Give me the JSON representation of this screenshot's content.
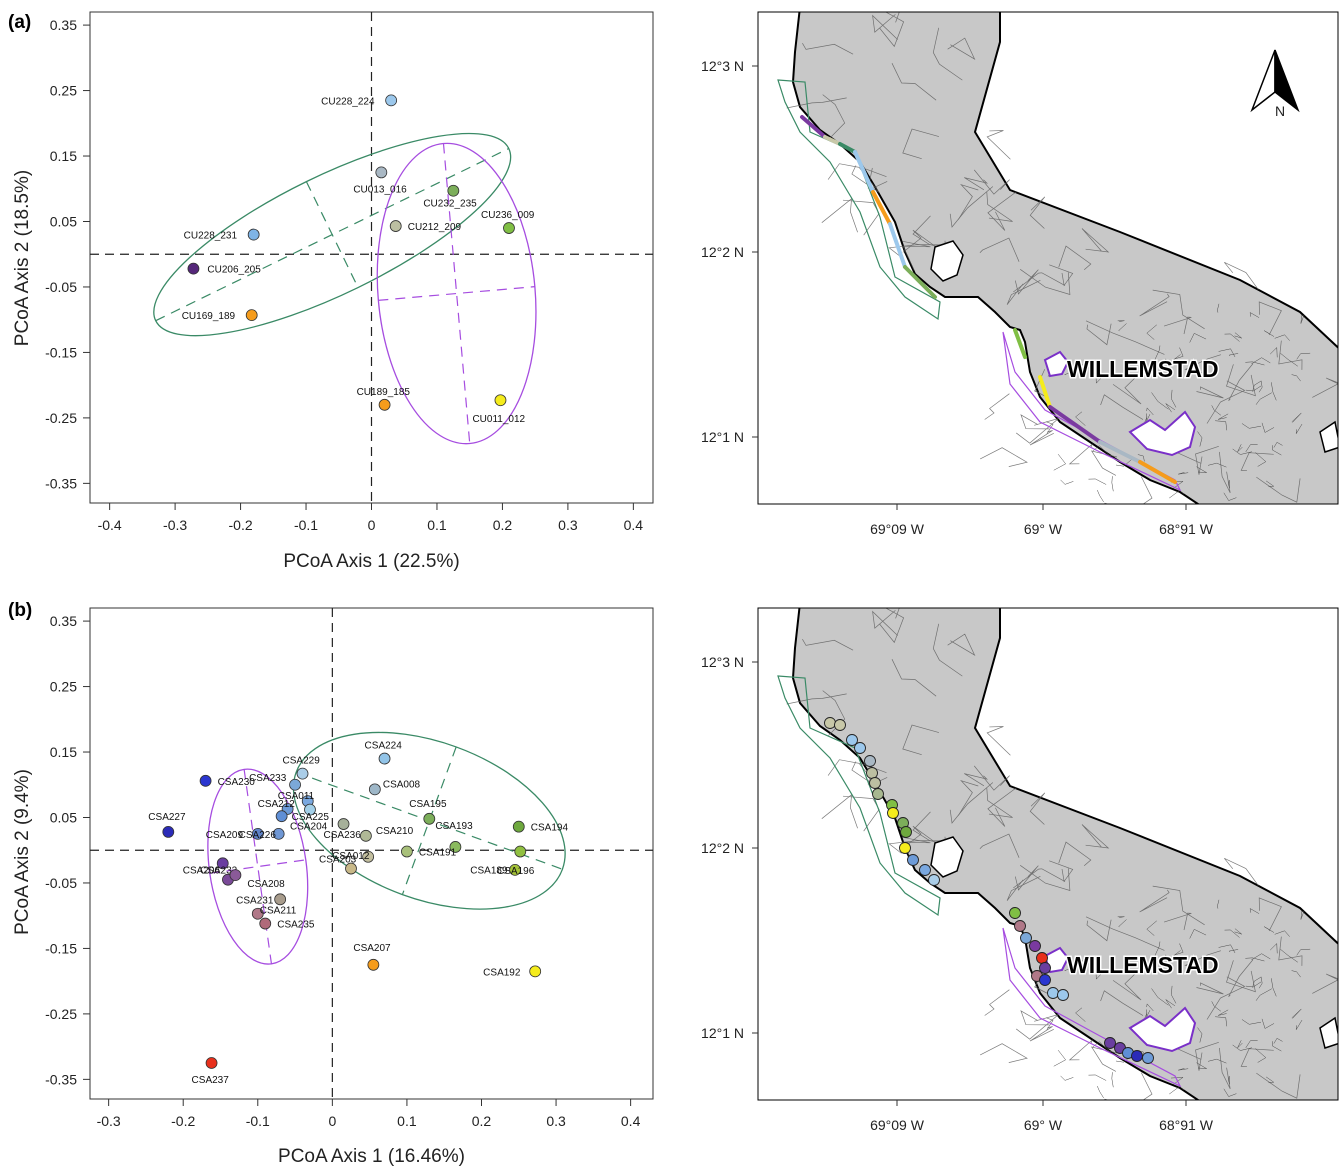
{
  "chart_data": [
    {
      "panel": "(a)",
      "type": "scatter",
      "xlabel": "PCoA Axis 1 (22.5%)",
      "ylabel": "PCoA Axis 2 (18.5%)",
      "xlim": [
        -0.43,
        0.43
      ],
      "ylim": [
        -0.38,
        0.37
      ],
      "xticks": [
        "-0.4",
        "-0.3",
        "-0.2",
        "-0.1",
        "0",
        "0.1",
        "0.2",
        "0.3",
        "0.4"
      ],
      "yticks": [
        "0.35",
        "0.25",
        "0.15",
        "0.05",
        "-0.05",
        "-0.15",
        "-0.25",
        "-0.35"
      ],
      "reference_lines": {
        "x": 0,
        "y": 0,
        "style": "dashed"
      },
      "points": [
        {
          "label": "CU228_224",
          "x": 0.03,
          "y": 0.235,
          "color": "#9cc8ec"
        },
        {
          "label": "CU013_016",
          "x": 0.015,
          "y": 0.125,
          "color": "#a9b8c4"
        },
        {
          "label": "CU232_235",
          "x": 0.125,
          "y": 0.097,
          "color": "#7cae5a"
        },
        {
          "label": "CU236_009",
          "x": 0.21,
          "y": 0.04,
          "color": "#80bf44"
        },
        {
          "label": "CU212_209",
          "x": 0.037,
          "y": 0.043,
          "color": "#bcbfa2"
        },
        {
          "label": "CU228_231",
          "x": -0.18,
          "y": 0.03,
          "color": "#7fb4e6"
        },
        {
          "label": "CU206_205",
          "x": -0.272,
          "y": -0.022,
          "color": "#55277a"
        },
        {
          "label": "CU169_189",
          "x": -0.183,
          "y": -0.093,
          "color": "#f59c1c"
        },
        {
          "label": "CU189_185",
          "x": 0.02,
          "y": -0.23,
          "color": "#f59c1c"
        },
        {
          "label": "CU011_012",
          "x": 0.197,
          "y": -0.223,
          "color": "#f5ec1c"
        }
      ],
      "ellipses": [
        {
          "color": "#3a8a66",
          "cx": -0.06,
          "cy": 0.03,
          "rx": 0.3,
          "ry": 0.09,
          "angle_deg": 26
        },
        {
          "color": "#a64de0",
          "cx": 0.13,
          "cy": -0.06,
          "rx": 0.12,
          "ry": 0.23,
          "angle_deg": 5
        }
      ]
    },
    {
      "panel": "(b)",
      "type": "scatter",
      "xlabel": "PCoA Axis 1 (16.46%)",
      "ylabel": "PCoA Axis 2 (9.4%)",
      "xlim": [
        -0.325,
        0.43
      ],
      "ylim": [
        -0.38,
        0.37
      ],
      "xticks": [
        "-0.3",
        "-0.2",
        "-0.1",
        "0",
        "0.1",
        "0.2",
        "0.3",
        "0.4"
      ],
      "yticks": [
        "0.35",
        "0.25",
        "0.15",
        "0.05",
        "-0.05",
        "-0.15",
        "-0.25",
        "-0.35"
      ],
      "reference_lines": {
        "x": 0,
        "y": 0,
        "style": "dashed"
      },
      "points": [
        {
          "label": "CSA224",
          "x": 0.07,
          "y": 0.14,
          "color": "#92c4e8"
        },
        {
          "label": "CSA229",
          "x": -0.04,
          "y": 0.117,
          "color": "#aacde8"
        },
        {
          "label": "CSA233",
          "x": -0.05,
          "y": 0.1,
          "color": "#7ba8d8"
        },
        {
          "label": "CSA230",
          "x": -0.17,
          "y": 0.106,
          "color": "#2b36d0"
        },
        {
          "label": "CSA008",
          "x": 0.057,
          "y": 0.093,
          "color": "#9eb7c8"
        },
        {
          "label": "CSA011",
          "x": -0.033,
          "y": 0.075,
          "color": "#7aa8e0"
        },
        {
          "label": "CSA212",
          "x": -0.06,
          "y": 0.063,
          "color": "#6d9bd8"
        },
        {
          "label": "CSA204",
          "x": -0.03,
          "y": 0.062,
          "color": "#a3cfe8"
        },
        {
          "label": "CSA225",
          "x": -0.068,
          "y": 0.052,
          "color": "#5f8fd6"
        },
        {
          "label": "CSA195",
          "x": 0.13,
          "y": 0.048,
          "color": "#7cae5a"
        },
        {
          "label": "CSA194",
          "x": 0.25,
          "y": 0.036,
          "color": "#6ea83e"
        },
        {
          "label": "CSA193",
          "x": 0.165,
          "y": 0.005,
          "color": "#8aba5e"
        },
        {
          "label": "CSA227",
          "x": -0.22,
          "y": 0.028,
          "color": "#2b2bb8"
        },
        {
          "label": "CSA209",
          "x": -0.1,
          "y": 0.025,
          "color": "#5e82c8"
        },
        {
          "label": "CSA226",
          "x": -0.072,
          "y": 0.025,
          "color": "#6f97d4"
        },
        {
          "label": "CSA236",
          "x": 0.015,
          "y": 0.04,
          "color": "#a6b09a"
        },
        {
          "label": "CSA210",
          "x": 0.045,
          "y": 0.022,
          "color": "#b0b896"
        },
        {
          "label": "CSA191",
          "x": 0.1,
          "y": -0.002,
          "color": "#a8c07a"
        },
        {
          "label": "CSA012",
          "x": 0.048,
          "y": -0.01,
          "color": "#c2be9e"
        },
        {
          "label": "CSA206",
          "x": -0.147,
          "y": -0.02,
          "color": "#6a3ea0"
        },
        {
          "label": "CSA232",
          "x": -0.14,
          "y": -0.045,
          "color": "#7a4a98"
        },
        {
          "label": "CSA208",
          "x": -0.13,
          "y": -0.038,
          "color": "#8a5a98"
        },
        {
          "label": "CSA203",
          "x": 0.025,
          "y": -0.028,
          "color": "#c8b888"
        },
        {
          "label": "CSA189",
          "x": 0.252,
          "y": -0.002,
          "color": "#90c040"
        },
        {
          "label": "CSA196",
          "x": 0.245,
          "y": -0.03,
          "color": "#a4c238"
        },
        {
          "label": "CSA231",
          "x": -0.07,
          "y": -0.075,
          "color": "#a89c8c"
        },
        {
          "label": "CSA211",
          "x": -0.1,
          "y": -0.097,
          "color": "#b07888"
        },
        {
          "label": "CSA235",
          "x": -0.09,
          "y": -0.112,
          "color": "#b06a7a"
        },
        {
          "label": "CSA207",
          "x": 0.055,
          "y": -0.175,
          "color": "#f59c1c"
        },
        {
          "label": "CSA192",
          "x": 0.272,
          "y": -0.185,
          "color": "#f5ec1c"
        },
        {
          "label": "CSA237",
          "x": -0.162,
          "y": -0.325,
          "color": "#e8301c"
        }
      ],
      "ellipses": [
        {
          "color": "#a64de0",
          "cx": -0.1,
          "cy": -0.025,
          "rx": 0.065,
          "ry": 0.15,
          "angle_deg": 8
        },
        {
          "color": "#3a8a66",
          "cx": 0.13,
          "cy": 0.045,
          "rx": 0.19,
          "ry": 0.12,
          "angle_deg": -20
        }
      ]
    }
  ],
  "maps": {
    "lat_ticks": [
      "12°3 N",
      "12°2 N",
      "12°1 N"
    ],
    "lon_ticks": [
      "69°09 W",
      "69° W",
      "68°91 W"
    ],
    "city_label": "WILLEMSTAD",
    "north_label": "N",
    "land_color": "#c8c8c8",
    "colors": {
      "green_boundary": "#3a8a66",
      "purple_boundary": "#a64de0"
    },
    "panel_a_segment_colors": [
      "#7a3aa0",
      "#c8c8a8",
      "#3a8a66",
      "#9cc8ec",
      "#f59c1c",
      "#9cc8ec",
      "#7cae5a",
      "#80bf44",
      "#f5ec1c",
      "#7a3aa0",
      "#a9b8c4",
      "#f59c1c"
    ],
    "panel_b_site_colors": [
      "#c8c8a8",
      "#c8c8a8",
      "#9cc8ec",
      "#9cc8ec",
      "#a9b8c4",
      "#bcbfa2",
      "#bcbfa2",
      "#a8b890",
      "#80bf44",
      "#f5ec1c",
      "#7cae5a",
      "#6ea83e",
      "#f5ec1c",
      "#6d9bd8",
      "#7aa8e0",
      "#aacde8",
      "#80bf44",
      "#b07888",
      "#7ba8d8",
      "#7a3aa0",
      "#e8301c",
      "#6a3ea0",
      "#b07888",
      "#2b36d0",
      "#9cc8ec",
      "#9cc8ec",
      "#6a3ea0",
      "#6a3ea0",
      "#5f8fd6",
      "#2b2bb8",
      "#6d9bd8"
    ]
  }
}
